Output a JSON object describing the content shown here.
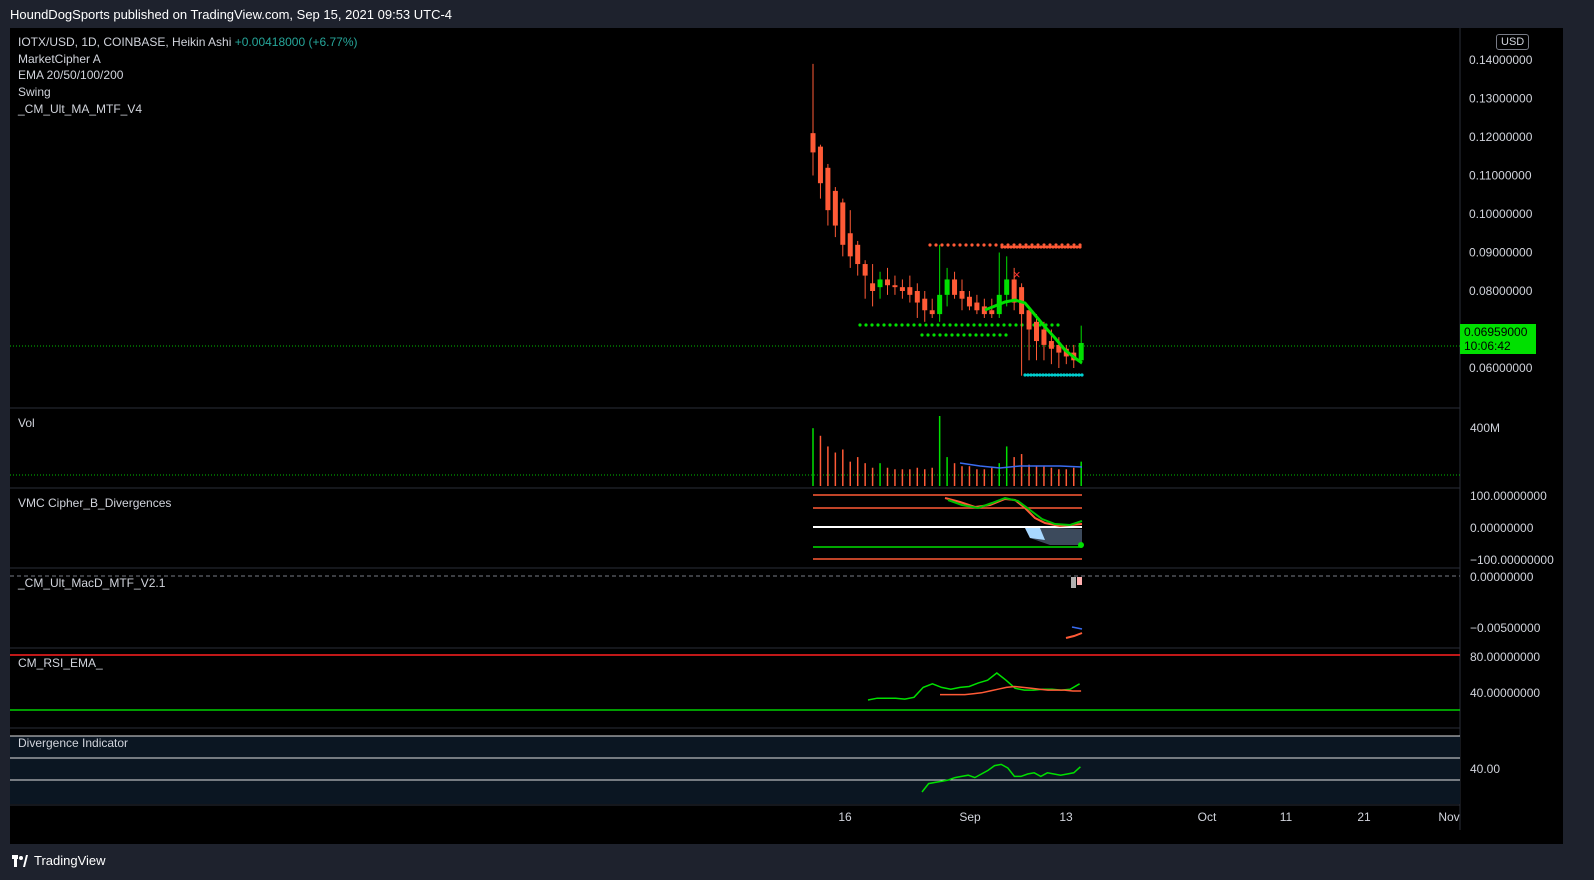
{
  "header": {
    "publisher_text": "HoundDogSports published on TradingView.com, Sep 15, 2021 09:53 UTC-4"
  },
  "main_legend": {
    "symbol": "IOTX/USD, 1D, COINBASE, Heikin Ashi",
    "change": "+0.00418000 (+6.77%)",
    "indicators": [
      "MarketCipher A",
      "EMA 20/50/100/200",
      "Swing",
      "_CM_Ult_MA_MTF_V4"
    ]
  },
  "currency_badge": "USD",
  "price_axis": {
    "ticks": [
      "0.14000000",
      "0.13000000",
      "0.12000000",
      "0.11000000",
      "0.10000000",
      "0.09000000",
      "0.08000000",
      "0.06000000"
    ]
  },
  "last_price": {
    "value": "0.06959000",
    "countdown": "10:06:42"
  },
  "panes": [
    {
      "name": "Vol",
      "axis_ticks": [
        "400M"
      ]
    },
    {
      "name": "VMC Cipher_B_Divergences",
      "axis_ticks": [
        "100.00000000",
        "0.00000000",
        "−100.00000000"
      ]
    },
    {
      "name": "_CM_Ult_MacD_MTF_V2.1",
      "axis_ticks": [
        "0.00000000",
        "−0.00500000"
      ]
    },
    {
      "name": "CM_RSI_EMA_",
      "axis_ticks": [
        "80.00000000",
        "40.00000000"
      ]
    },
    {
      "name": "Divergence Indicator",
      "axis_ticks": [
        "40.00"
      ]
    }
  ],
  "time_axis": {
    "ticks": [
      "16",
      "Sep",
      "13",
      "Oct",
      "11",
      "21",
      "Nov"
    ]
  },
  "footer": {
    "brand": "TradingView"
  },
  "colors": {
    "up": "#00e000",
    "down": "#ff5a36",
    "bg": "#000000",
    "pane_border": "#2a2e39"
  },
  "chart_data": {
    "type": "candlestick",
    "style": "heikin-ashi",
    "candles": [
      {
        "o": 0.121,
        "h": 0.139,
        "l": 0.11,
        "c": 0.116
      },
      {
        "o": 0.1175,
        "h": 0.118,
        "l": 0.104,
        "c": 0.108
      },
      {
        "o": 0.112,
        "h": 0.113,
        "l": 0.097,
        "c": 0.101
      },
      {
        "o": 0.106,
        "h": 0.107,
        "l": 0.094,
        "c": 0.097
      },
      {
        "o": 0.103,
        "h": 0.104,
        "l": 0.089,
        "c": 0.092
      },
      {
        "o": 0.095,
        "h": 0.101,
        "l": 0.086,
        "c": 0.089
      },
      {
        "o": 0.092,
        "h": 0.093,
        "l": 0.084,
        "c": 0.087
      },
      {
        "o": 0.087,
        "h": 0.088,
        "l": 0.078,
        "c": 0.084
      },
      {
        "o": 0.082,
        "h": 0.087,
        "l": 0.076,
        "c": 0.08
      },
      {
        "o": 0.081,
        "h": 0.085,
        "l": 0.078,
        "c": 0.083
      },
      {
        "o": 0.083,
        "h": 0.086,
        "l": 0.079,
        "c": 0.0815
      },
      {
        "o": 0.0815,
        "h": 0.084,
        "l": 0.079,
        "c": 0.081
      },
      {
        "o": 0.081,
        "h": 0.083,
        "l": 0.078,
        "c": 0.08
      },
      {
        "o": 0.081,
        "h": 0.084,
        "l": 0.077,
        "c": 0.079
      },
      {
        "o": 0.08,
        "h": 0.082,
        "l": 0.073,
        "c": 0.077
      },
      {
        "o": 0.078,
        "h": 0.08,
        "l": 0.072,
        "c": 0.075
      },
      {
        "o": 0.075,
        "h": 0.078,
        "l": 0.073,
        "c": 0.074
      },
      {
        "o": 0.074,
        "h": 0.092,
        "l": 0.072,
        "c": 0.079
      },
      {
        "o": 0.079,
        "h": 0.086,
        "l": 0.076,
        "c": 0.083
      },
      {
        "o": 0.083,
        "h": 0.085,
        "l": 0.078,
        "c": 0.079
      },
      {
        "o": 0.08,
        "h": 0.083,
        "l": 0.075,
        "c": 0.078
      },
      {
        "o": 0.0785,
        "h": 0.08,
        "l": 0.075,
        "c": 0.076
      },
      {
        "o": 0.077,
        "h": 0.079,
        "l": 0.074,
        "c": 0.075
      },
      {
        "o": 0.076,
        "h": 0.078,
        "l": 0.073,
        "c": 0.074
      },
      {
        "o": 0.075,
        "h": 0.078,
        "l": 0.073,
        "c": 0.074
      },
      {
        "o": 0.074,
        "h": 0.09,
        "l": 0.073,
        "c": 0.079
      },
      {
        "o": 0.079,
        "h": 0.089,
        "l": 0.076,
        "c": 0.083
      },
      {
        "o": 0.083,
        "h": 0.086,
        "l": 0.075,
        "c": 0.077
      },
      {
        "o": 0.081,
        "h": 0.082,
        "l": 0.058,
        "c": 0.074
      },
      {
        "o": 0.075,
        "h": 0.076,
        "l": 0.062,
        "c": 0.07
      },
      {
        "o": 0.072,
        "h": 0.074,
        "l": 0.062,
        "c": 0.067
      },
      {
        "o": 0.07,
        "h": 0.072,
        "l": 0.062,
        "c": 0.066
      },
      {
        "o": 0.067,
        "h": 0.07,
        "l": 0.061,
        "c": 0.065
      },
      {
        "o": 0.066,
        "h": 0.068,
        "l": 0.06,
        "c": 0.064
      },
      {
        "o": 0.065,
        "h": 0.066,
        "l": 0.061,
        "c": 0.063
      },
      {
        "o": 0.064,
        "h": 0.066,
        "l": 0.06,
        "c": 0.062
      },
      {
        "o": 0.062,
        "h": 0.071,
        "l": 0.061,
        "c": 0.0665
      }
    ],
    "volume": [
      380,
      330,
      260,
      220,
      240,
      160,
      190,
      150,
      120,
      150,
      120,
      110,
      110,
      110,
      120,
      110,
      120,
      460,
      190,
      150,
      130,
      130,
      110,
      110,
      120,
      150,
      260,
      190,
      210,
      140,
      130,
      130,
      120,
      110,
      110,
      120,
      160
    ],
    "macd_hist_last": [
      -0.0015,
      -0.0015
    ],
    "rsi": [
      30,
      32,
      32,
      32,
      31,
      33,
      44,
      48,
      44,
      42,
      44,
      45,
      49,
      52,
      60,
      52,
      43,
      41,
      41,
      42,
      42,
      41,
      42,
      48
    ],
    "rsi_ema": [
      36,
      36,
      36,
      36,
      37,
      38,
      40,
      42,
      44,
      45,
      44,
      43,
      42,
      41,
      41,
      41,
      40,
      40
    ],
    "divergence_line": [
      20,
      27,
      28,
      29,
      30,
      32,
      33,
      34,
      32,
      35,
      38,
      42,
      43,
      40,
      33,
      33,
      35,
      36,
      33,
      36,
      35,
      34,
      35,
      36,
      41
    ]
  }
}
